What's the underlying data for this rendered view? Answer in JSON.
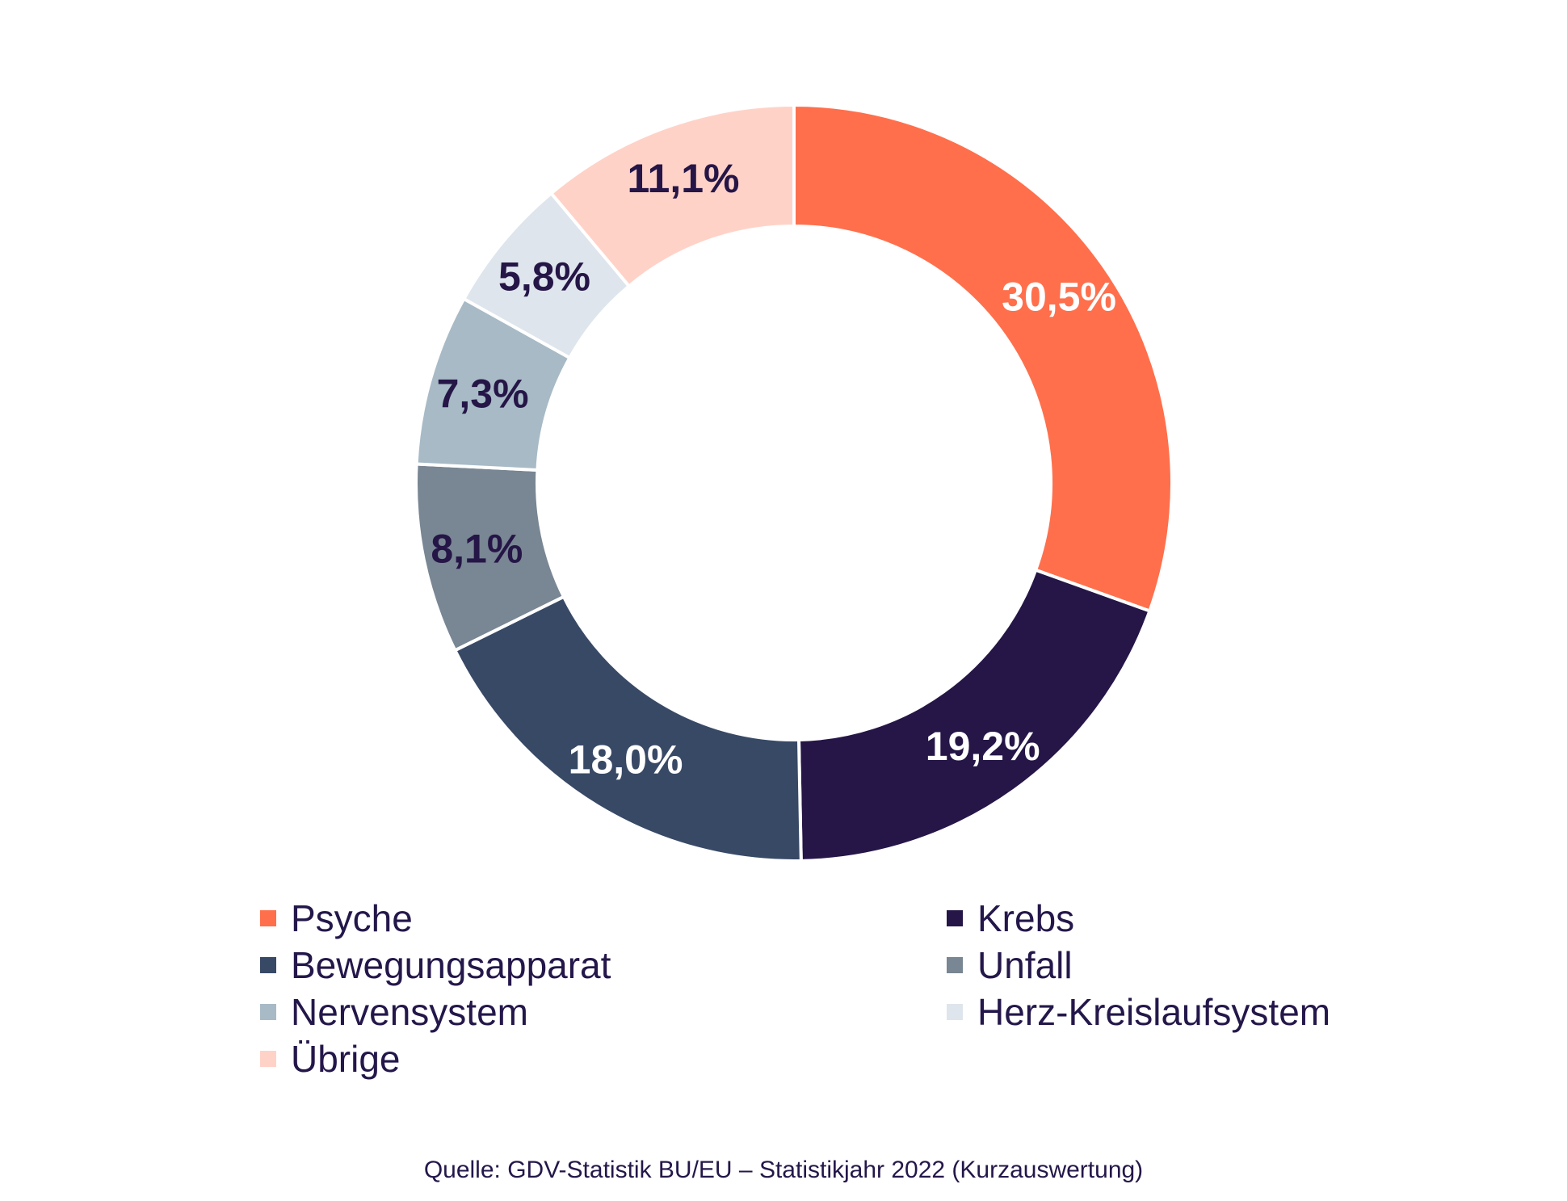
{
  "chart_data": {
    "type": "donut",
    "unit": "%",
    "slices": [
      {
        "name": "Psyche",
        "value": 30.5,
        "label": "30,5%",
        "color": "#ff6f4c",
        "label_color": "#ffffff"
      },
      {
        "name": "Krebs",
        "value": 19.2,
        "label": "19,2%",
        "color": "#251647",
        "label_color": "#ffffff"
      },
      {
        "name": "Bewegungsapparat",
        "value": 18.0,
        "label": "18,0%",
        "color": "#384966",
        "label_color": "#ffffff"
      },
      {
        "name": "Unfall",
        "value": 8.1,
        "label": "8,1%",
        "color": "#798693",
        "label_color": "#251647"
      },
      {
        "name": "Nervensystem",
        "value": 7.3,
        "label": "7,3%",
        "color": "#a7bac6",
        "label_color": "#251647"
      },
      {
        "name": "Herz-Kreislaufsystem",
        "value": 5.8,
        "label": "5,8%",
        "color": "#dee5ec",
        "label_color": "#251647"
      },
      {
        "name": "Übrige",
        "value": 11.1,
        "label": "11,1%",
        "color": "#ffd2c8",
        "label_color": "#251647"
      }
    ],
    "legend_position": "bottom",
    "legend_order": [
      "Psyche",
      "Krebs",
      "Bewegungsapparat",
      "Unfall",
      "Nervensystem",
      "Herz-Kreislaufsystem",
      "Übrige"
    ]
  },
  "source": "Quelle: GDV-Statistik BU/EU – Statistikjahr 2022 (Kurzauswertung)"
}
